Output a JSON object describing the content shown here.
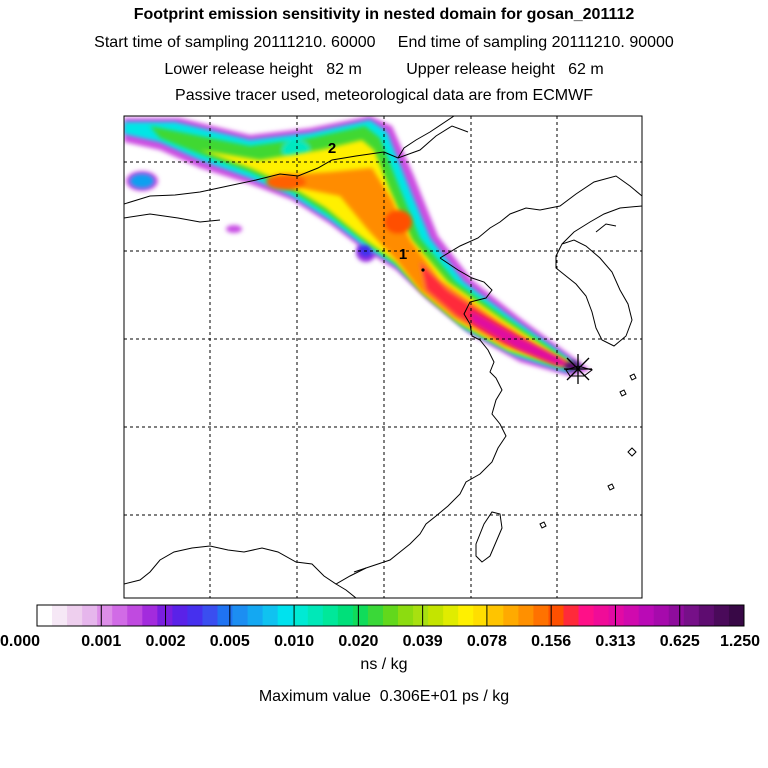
{
  "header": {
    "title": "Footprint emission sensitivity in nested domain for gosan_201112",
    "sampling_line": "Start time of sampling 20111210. 60000     End time of sampling 20111210. 90000",
    "release_line": "Lower release height   82 m          Upper release height   62 m",
    "tracer_line": "Passive tracer used, meteorological data are from ECMWF"
  },
  "map": {
    "release_markers": [
      "1",
      "2"
    ],
    "receptor_symbol": "star-cross"
  },
  "legend": {
    "tick_labels": [
      "0.000",
      "0.001",
      "0.002",
      "0.005",
      "0.010",
      "0.020",
      "0.039",
      "0.078",
      "0.156",
      "0.313",
      "0.625",
      "1.250"
    ],
    "unit": "ns / kg",
    "max_value_text": "Maximum value  0.306E+01 ps / kg",
    "colors": [
      "#ffffff",
      "#f6e8f6",
      "#eecfee",
      "#e6b6ec",
      "#dd8ee8",
      "#d16be6",
      "#c04ae0",
      "#a32bdd",
      "#7a1ee0",
      "#5a22e8",
      "#4630ee",
      "#3a4ef0",
      "#1f73f2",
      "#1c8ef2",
      "#14a8f2",
      "#10c2f0",
      "#00e2ee",
      "#00ead4",
      "#00e8b8",
      "#00e89a",
      "#00e07a",
      "#10dc5a",
      "#3ad838",
      "#62d81c",
      "#8cdc10",
      "#a8e010",
      "#c4e400",
      "#e0ec00",
      "#fff000",
      "#ffde00",
      "#ffc400",
      "#ffaa00",
      "#ff9000",
      "#ff7200",
      "#ff5000",
      "#ff2a3a",
      "#ff1088",
      "#f00c98",
      "#e20aa4",
      "#d00aae",
      "#ba0ab6",
      "#a60aac",
      "#8e0c9c",
      "#761088",
      "#5e0c70",
      "#4a0a5a",
      "#380846"
    ]
  }
}
